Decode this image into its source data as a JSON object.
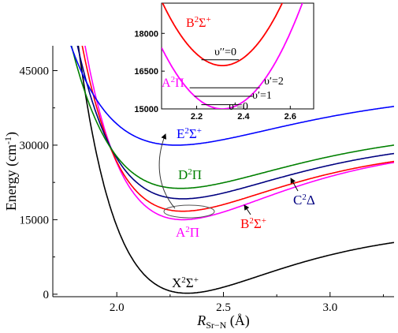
{
  "chart_data": {
    "type": "line",
    "xlabel": "R",
    "xlabel_sub": "Sr−N",
    "xlabel_unit": "(Å)",
    "ylabel": "Energy (cm",
    "ylabel_sup": "-1",
    "ylabel_close": ")",
    "xlim": [
      1.7,
      3.3
    ],
    "ylim": [
      -500,
      50000
    ],
    "xticks": [
      "2.0",
      "2.5",
      "3.0"
    ],
    "yticks": [
      "0",
      "15000",
      "30000",
      "45000"
    ],
    "series": [
      {
        "name": "X2Σ+",
        "label_parts": [
          "X",
          "2",
          "Σ",
          "+"
        ],
        "color": "#000000",
        "re": 2.33,
        "Te": 200,
        "De": 13500,
        "a": 2.1
      },
      {
        "name": "A2Π",
        "label_parts": [
          "A",
          "2",
          "Π",
          ""
        ],
        "color": "#ff00ff",
        "re": 2.31,
        "Te": 15000,
        "De": 15500,
        "a": 2.0
      },
      {
        "name": "B2Σ+",
        "label_parts": [
          "B",
          "2",
          "Σ",
          "+"
        ],
        "color": "#ff0000",
        "re": 2.31,
        "Te": 16700,
        "De": 13500,
        "a": 2.0
      },
      {
        "name": "C2Δ",
        "label_parts": [
          "C",
          "2",
          "Δ",
          ""
        ],
        "color": "#000080",
        "re": 2.31,
        "Te": 19200,
        "De": 12700,
        "a": 1.9
      },
      {
        "name": "D2Π",
        "label_parts": [
          "D",
          "2",
          "Π",
          ""
        ],
        "color": "#008000",
        "re": 2.3,
        "Te": 21300,
        "De": 12500,
        "a": 1.8
      },
      {
        "name": "E2Σ+",
        "label_parts": [
          "E",
          "2",
          "Σ",
          "+"
        ],
        "color": "#0000ff",
        "re": 2.28,
        "Te": 30000,
        "De": 11500,
        "a": 1.7
      }
    ],
    "inset": {
      "xlim": [
        2.05,
        2.7
      ],
      "ylim": [
        15000,
        19200
      ],
      "xticks": [
        "2.2",
        "2.4",
        "2.6"
      ],
      "yticks": [
        "15000",
        "16500",
        "18000"
      ],
      "curves": [
        {
          "name": "B2Σ+",
          "label_parts": [
            "B",
            "2",
            "Σ",
            "+"
          ],
          "color": "#ff0000",
          "x0": 2.31,
          "y0": 16720,
          "k": 38000
        },
        {
          "name": "A2Π",
          "label_parts": [
            "A",
            "2",
            "Π",
            ""
          ],
          "color": "#ff00ff",
          "x0": 2.31,
          "y0": 15000,
          "k": 36000
        }
      ],
      "levels": [
        {
          "label": "υ′′=0",
          "y": 16950,
          "x1": 2.22,
          "x2": 2.38,
          "label_x": 2.22
        },
        {
          "label": "υ′=2",
          "y": 15840,
          "x1": 2.17,
          "x2": 2.47,
          "label_x": 2.47
        },
        {
          "label": "υ′=1",
          "y": 15500,
          "x1": 2.19,
          "x2": 2.44,
          "label_x": 2.44
        },
        {
          "label": "υ′=0",
          "y": 15170,
          "x1": 2.22,
          "x2": 2.38,
          "label_x": 2.38
        }
      ]
    }
  }
}
